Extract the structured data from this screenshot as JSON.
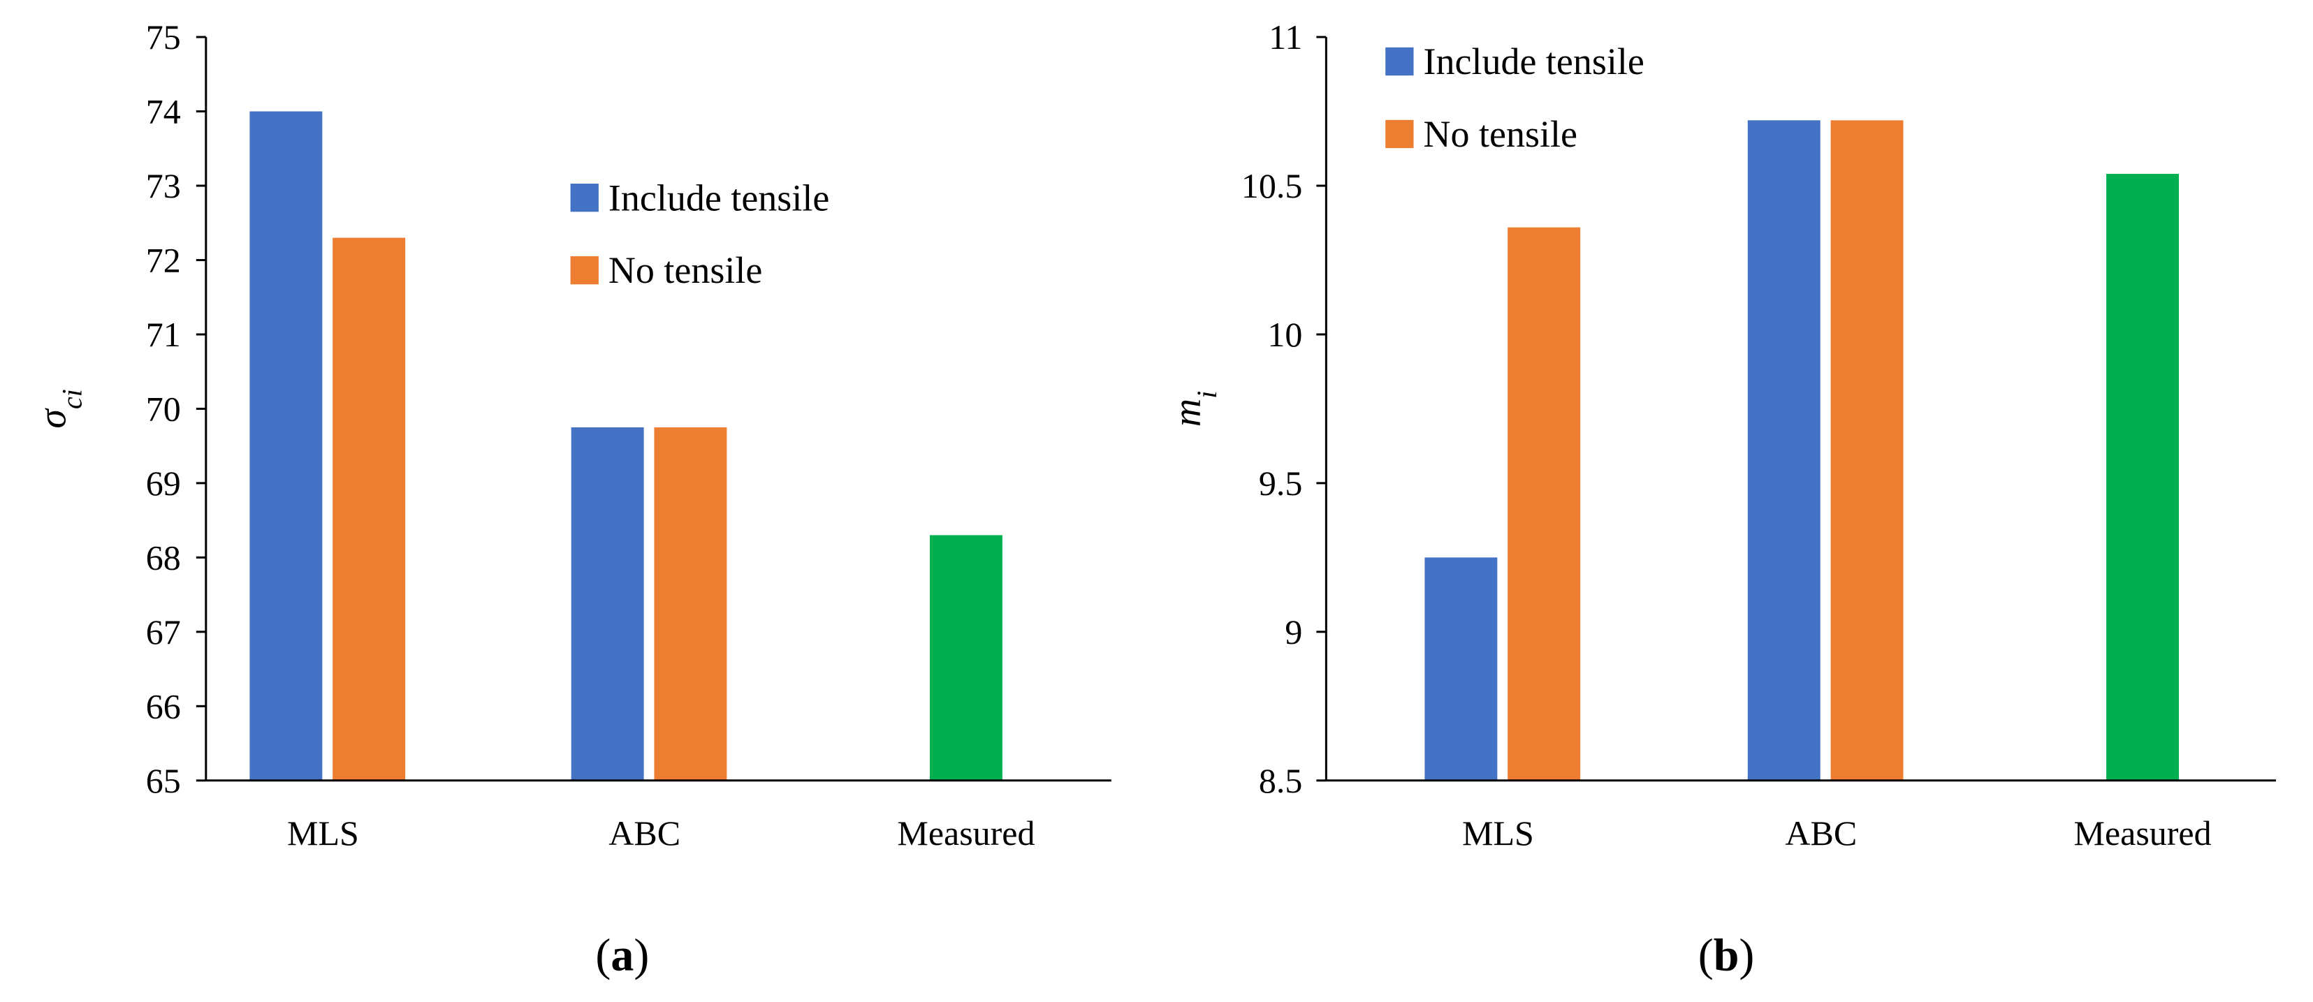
{
  "colors": {
    "include_tensile": "#4472C4",
    "no_tensile": "#ED7D31",
    "measured": "#00B050",
    "axis": "#000000"
  },
  "chart_data": [
    {
      "type": "bar",
      "panel_caption": "(a)",
      "ylabel_base": "σ",
      "ylabel_sub": "ci",
      "xlabel": "",
      "ylim": [
        65,
        75
      ],
      "ytick_step": 1,
      "yticks": [
        "65",
        "66",
        "67",
        "68",
        "69",
        "70",
        "71",
        "72",
        "73",
        "74",
        "75"
      ],
      "categories": [
        "MLS",
        "ABC",
        "Measured"
      ],
      "series": [
        {
          "name": "Include tensile",
          "color_key": "include_tensile",
          "values": [
            74.0,
            69.75,
            null
          ]
        },
        {
          "name": "No tensile",
          "color_key": "no_tensile",
          "values": [
            72.3,
            69.75,
            null
          ]
        },
        {
          "name": "Measured",
          "color_key": "measured",
          "values": [
            null,
            null,
            68.3
          ]
        }
      ],
      "legend": {
        "placement": "middle-center",
        "entries": [
          {
            "label": "Include tensile",
            "color_key": "include_tensile"
          },
          {
            "label": "No tensile",
            "color_key": "no_tensile"
          }
        ]
      },
      "grid": false
    },
    {
      "type": "bar",
      "panel_caption": "(b)",
      "ylabel_base": "m",
      "ylabel_sub": "i",
      "xlabel": "",
      "ylim": [
        8.5,
        11
      ],
      "ytick_step": 0.5,
      "yticks": [
        "8.5",
        "9",
        "9.5",
        "10",
        "10.5",
        "11"
      ],
      "categories": [
        "MLS",
        "ABC",
        "Measured"
      ],
      "series": [
        {
          "name": "Include tensile",
          "color_key": "include_tensile",
          "values": [
            9.25,
            10.72,
            null
          ]
        },
        {
          "name": "No tensile",
          "color_key": "no_tensile",
          "values": [
            10.36,
            10.72,
            null
          ]
        },
        {
          "name": "Measured",
          "color_key": "measured",
          "values": [
            null,
            null,
            10.54
          ]
        }
      ],
      "legend": {
        "placement": "top-left",
        "entries": [
          {
            "label": "Include tensile",
            "color_key": "include_tensile"
          },
          {
            "label": "No tensile",
            "color_key": "no_tensile"
          }
        ]
      },
      "grid": false
    }
  ]
}
